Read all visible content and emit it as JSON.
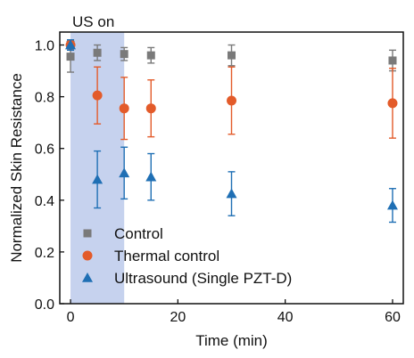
{
  "chart_data": {
    "type": "scatter",
    "title": "",
    "xlabel": "Time (min)",
    "ylabel": "Normalized Skin Resistance",
    "xlim": [
      -2,
      62
    ],
    "ylim": [
      0,
      1.05
    ],
    "xticks": [
      0,
      20,
      40,
      60
    ],
    "yticks": [
      0.0,
      0.2,
      0.4,
      0.6,
      0.8,
      1.0
    ],
    "xtick_labels": [
      "0",
      "20",
      "40",
      "60"
    ],
    "ytick_labels": [
      "0.0",
      "0.2",
      "0.4",
      "0.6",
      "0.8",
      "1.0"
    ],
    "annotation": {
      "text": "US on",
      "x_start": 0,
      "x_end": 10,
      "color": "#c6d2ee"
    },
    "legend": {
      "position": "bottom-left"
    },
    "grid": false,
    "series": [
      {
        "name": "Control",
        "marker": "square",
        "color": "#7a7a7a",
        "x": [
          0,
          0,
          5,
          10,
          15,
          30,
          60
        ],
        "y": [
          1.0,
          0.955,
          0.97,
          0.965,
          0.96,
          0.96,
          0.94
        ],
        "err": [
          0.0,
          0.06,
          0.03,
          0.025,
          0.03,
          0.04,
          0.04
        ]
      },
      {
        "name": "Thermal control",
        "marker": "circle",
        "color": "#e35b2a",
        "x": [
          0,
          5,
          10,
          15,
          30,
          60
        ],
        "y": [
          1.0,
          0.805,
          0.755,
          0.755,
          0.785,
          0.775
        ],
        "err": [
          0.02,
          0.11,
          0.12,
          0.11,
          0.13,
          0.135
        ]
      },
      {
        "name": "Ultrasound (Single PZT-D)",
        "marker": "triangle",
        "color": "#1f6fb4",
        "x": [
          0,
          5,
          10,
          15,
          30,
          60
        ],
        "y": [
          1.0,
          0.48,
          0.505,
          0.49,
          0.425,
          0.38
        ],
        "err": [
          0.02,
          0.11,
          0.1,
          0.09,
          0.085,
          0.065
        ]
      }
    ]
  }
}
